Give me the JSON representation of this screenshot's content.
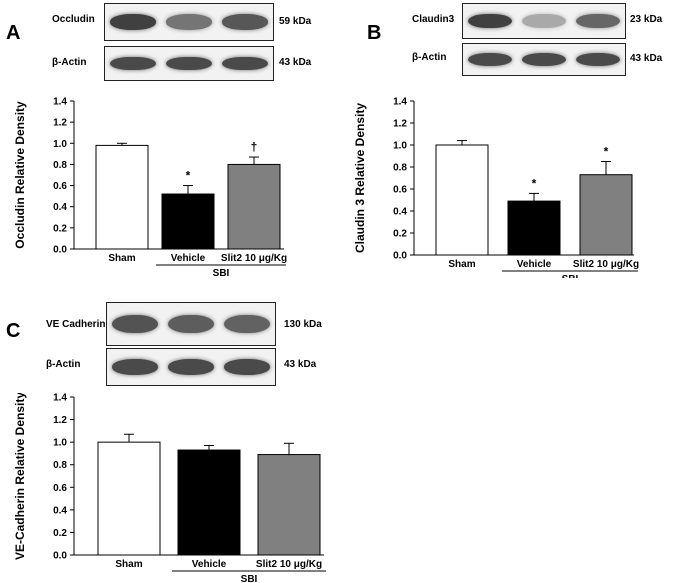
{
  "panels": [
    {
      "letter": "A",
      "blots": [
        {
          "label": "Occludin",
          "kda": "59 kDa",
          "bands": [
            0.9,
            0.62,
            0.78
          ]
        },
        {
          "label": "β-Actin",
          "kda": "43 kDa",
          "bands": [
            0.85,
            0.85,
            0.85
          ]
        }
      ]
    },
    {
      "letter": "B",
      "blots": [
        {
          "label": "Claudin3",
          "kda": "23 kDa",
          "bands": [
            0.9,
            0.35,
            0.7
          ]
        },
        {
          "label": "β-Actin",
          "kda": "43 kDa",
          "bands": [
            0.85,
            0.85,
            0.85
          ]
        }
      ]
    },
    {
      "letter": "C",
      "blots": [
        {
          "label": "VE Cadherin",
          "kda": "130 kDa",
          "bands": [
            0.8,
            0.75,
            0.72
          ]
        },
        {
          "label": "β-Actin",
          "kda": "43 kDa",
          "bands": [
            0.85,
            0.85,
            0.85
          ]
        }
      ]
    }
  ],
  "chart_data": [
    {
      "type": "bar",
      "ylabel": "Occludin Relative Density",
      "categories": [
        "Sham",
        "Vehicle",
        "Slit2 10 μg/Kg"
      ],
      "values": [
        0.98,
        0.52,
        0.8
      ],
      "errors": [
        0.02,
        0.08,
        0.07
      ],
      "annotations": [
        "",
        "*",
        "†"
      ],
      "colors": [
        "#ffffff",
        "#000000",
        "#808080"
      ],
      "group_label": "SBI",
      "ylim": [
        0,
        1.4
      ],
      "yticks": [
        "0.0",
        "0.2",
        "0.4",
        "0.6",
        "0.8",
        "1.0",
        "1.2",
        "1.4"
      ]
    },
    {
      "type": "bar",
      "ylabel": "Claudin 3 Relative Density",
      "categories": [
        "Sham",
        "Vehicle",
        "Slit2 10 μg/Kg"
      ],
      "values": [
        1.0,
        0.49,
        0.73
      ],
      "errors": [
        0.04,
        0.07,
        0.12
      ],
      "annotations": [
        "",
        "*",
        "*"
      ],
      "colors": [
        "#ffffff",
        "#000000",
        "#808080"
      ],
      "group_label": "SBI",
      "ylim": [
        0,
        1.4
      ],
      "yticks": [
        "0.0",
        "0.2",
        "0.4",
        "0.6",
        "0.8",
        "1.0",
        "1.2",
        "1.4"
      ]
    },
    {
      "type": "bar",
      "ylabel": "VE-Cadherin Relative Density",
      "categories": [
        "Sham",
        "Vehicle",
        "Slit2 10 μg/Kg"
      ],
      "values": [
        1.0,
        0.93,
        0.89
      ],
      "errors": [
        0.07,
        0.04,
        0.1
      ],
      "annotations": [
        "",
        "",
        ""
      ],
      "colors": [
        "#ffffff",
        "#000000",
        "#808080"
      ],
      "group_label": "SBI",
      "ylim": [
        0,
        1.4
      ],
      "yticks": [
        "0.0",
        "0.2",
        "0.4",
        "0.6",
        "0.8",
        "1.0",
        "1.2",
        "1.4"
      ]
    }
  ]
}
